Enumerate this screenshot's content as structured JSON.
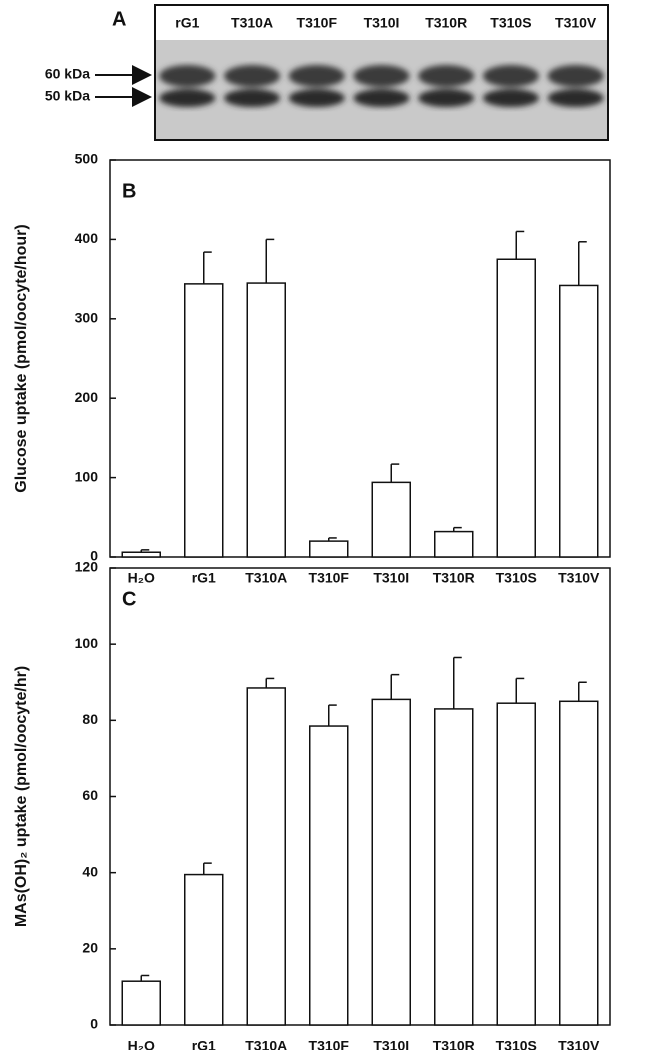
{
  "panel_a": {
    "label": "A",
    "lanes": [
      "rG1",
      "T310A",
      "T310F",
      "T310I",
      "T310R",
      "T310S",
      "T310V"
    ],
    "markers": [
      "60 kDa",
      "50 kDa"
    ]
  },
  "chart_data": [
    {
      "type": "bar",
      "panel_label": "B",
      "y_label": "Glucose uptake (pmol/oocyte/hour)",
      "categories": [
        "H₂O",
        "rG1",
        "T310A",
        "T310F",
        "T310I",
        "T310R",
        "T310S",
        "T310V"
      ],
      "values": [
        6,
        344,
        345,
        20,
        94,
        32,
        375,
        342
      ],
      "errors": [
        3,
        40,
        55,
        4,
        23,
        5,
        35,
        55
      ],
      "color": "#ffffff",
      "ylim": [
        0,
        500
      ],
      "yticks": [
        0,
        100,
        200,
        300,
        400,
        500
      ]
    },
    {
      "type": "bar",
      "panel_label": "C",
      "y_label": "MAs(OH)₂ uptake (pmol/oocyte/hr)",
      "categories": [
        "H₂O",
        "rG1",
        "T310A",
        "T310F",
        "T310I",
        "T310R",
        "T310S",
        "T310V"
      ],
      "values": [
        11.5,
        39.5,
        88.5,
        78.5,
        85.5,
        83,
        84.5,
        85
      ],
      "errors": [
        1.5,
        3,
        2.5,
        5.5,
        6.5,
        13.5,
        6.5,
        5
      ],
      "color": "#ffffff",
      "ylim": [
        0,
        120
      ],
      "yticks": [
        0,
        20,
        40,
        60,
        80,
        100,
        120
      ]
    }
  ]
}
